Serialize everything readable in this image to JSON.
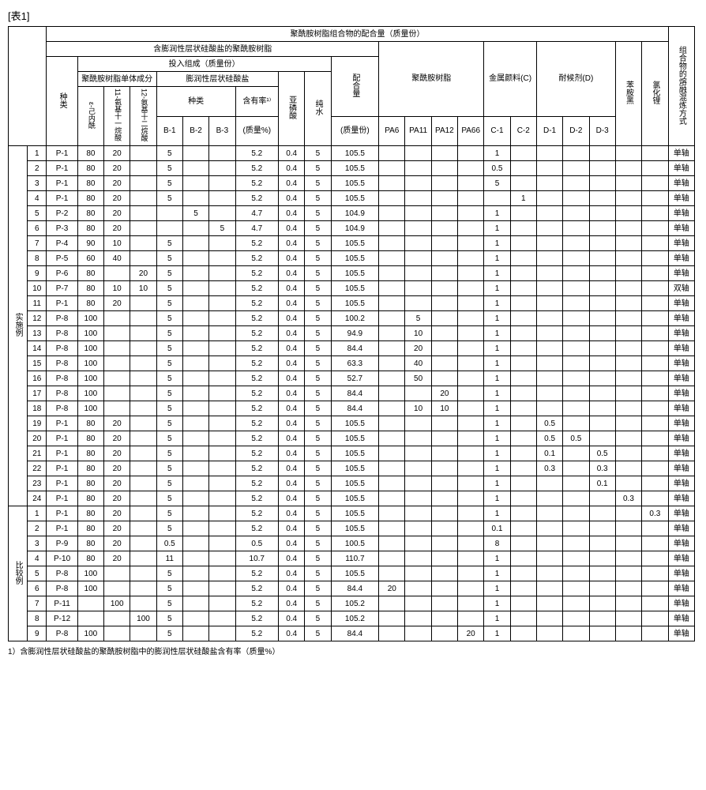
{
  "tableLabel": "[表1]",
  "mainHeaders": {
    "top": "聚酰胺树脂组合物的配合量（质量份）",
    "resinGroup": "含膨润性层状硅酸盐的聚酰胺树脂",
    "composition": "投入组成（质量份）",
    "monomer": "聚酰胺树脂单体成分",
    "silicate": "膨润性层状硅酸盐",
    "silicateKind": "种类",
    "silicateRate": "含有率¹⁾",
    "silicateRateUnit": "(质量%)",
    "phos": "亚磷酸",
    "water": "纯水",
    "amount": "配合量",
    "amountUnit": "(质量份)",
    "pa": "聚酰胺树脂",
    "pigment": "金属颜料(C)",
    "weather": "耐候剂(D)",
    "aniline": "苯胺黑",
    "licl": "氯化锂",
    "mix": "组合物的熔融混炼方式",
    "kind": "种类",
    "m1": "ε-己内酰",
    "m2": "11-氨基十一烷酸",
    "m3": "12-氨基十二烷酸"
  },
  "cols": {
    "b": [
      "B-1",
      "B-2",
      "B-3"
    ],
    "pa": [
      "PA6",
      "PA11",
      "PA12",
      "PA66"
    ],
    "c": [
      "C-1",
      "C-2"
    ],
    "d": [
      "D-1",
      "D-2",
      "D-3"
    ]
  },
  "groups": [
    {
      "label": "实施例",
      "start": 0,
      "count": 24
    },
    {
      "label": "比较例",
      "start": 24,
      "count": 9
    }
  ],
  "rows": [
    {
      "n": "1",
      "k": "P-1",
      "m": [
        "80",
        "20",
        ""
      ],
      "b": [
        "5",
        "",
        ""
      ],
      "r": "5.2",
      "ph": "0.4",
      "w": "5",
      "amt": "105.5",
      "pa": [
        "",
        "",
        "",
        ""
      ],
      "c": [
        "1",
        ""
      ],
      "d": [
        "",
        "",
        ""
      ],
      "an": "",
      "li": "",
      "mx": "单轴"
    },
    {
      "n": "2",
      "k": "P-1",
      "m": [
        "80",
        "20",
        ""
      ],
      "b": [
        "5",
        "",
        ""
      ],
      "r": "5.2",
      "ph": "0.4",
      "w": "5",
      "amt": "105.5",
      "pa": [
        "",
        "",
        "",
        ""
      ],
      "c": [
        "0.5",
        ""
      ],
      "d": [
        "",
        "",
        ""
      ],
      "an": "",
      "li": "",
      "mx": "单轴"
    },
    {
      "n": "3",
      "k": "P-1",
      "m": [
        "80",
        "20",
        ""
      ],
      "b": [
        "5",
        "",
        ""
      ],
      "r": "5.2",
      "ph": "0.4",
      "w": "5",
      "amt": "105.5",
      "pa": [
        "",
        "",
        "",
        ""
      ],
      "c": [
        "5",
        ""
      ],
      "d": [
        "",
        "",
        ""
      ],
      "an": "",
      "li": "",
      "mx": "单轴"
    },
    {
      "n": "4",
      "k": "P-1",
      "m": [
        "80",
        "20",
        ""
      ],
      "b": [
        "5",
        "",
        ""
      ],
      "r": "5.2",
      "ph": "0.4",
      "w": "5",
      "amt": "105.5",
      "pa": [
        "",
        "",
        "",
        ""
      ],
      "c": [
        "",
        "1"
      ],
      "d": [
        "",
        "",
        ""
      ],
      "an": "",
      "li": "",
      "mx": "单轴"
    },
    {
      "n": "5",
      "k": "P-2",
      "m": [
        "80",
        "20",
        ""
      ],
      "b": [
        "",
        "5",
        ""
      ],
      "r": "4.7",
      "ph": "0.4",
      "w": "5",
      "amt": "104.9",
      "pa": [
        "",
        "",
        "",
        ""
      ],
      "c": [
        "1",
        ""
      ],
      "d": [
        "",
        "",
        ""
      ],
      "an": "",
      "li": "",
      "mx": "单轴"
    },
    {
      "n": "6",
      "k": "P-3",
      "m": [
        "80",
        "20",
        ""
      ],
      "b": [
        "",
        "",
        "5"
      ],
      "r": "4.7",
      "ph": "0.4",
      "w": "5",
      "amt": "104.9",
      "pa": [
        "",
        "",
        "",
        ""
      ],
      "c": [
        "1",
        ""
      ],
      "d": [
        "",
        "",
        ""
      ],
      "an": "",
      "li": "",
      "mx": "单轴"
    },
    {
      "n": "7",
      "k": "P-4",
      "m": [
        "90",
        "10",
        ""
      ],
      "b": [
        "5",
        "",
        ""
      ],
      "r": "5.2",
      "ph": "0.4",
      "w": "5",
      "amt": "105.5",
      "pa": [
        "",
        "",
        "",
        ""
      ],
      "c": [
        "1",
        ""
      ],
      "d": [
        "",
        "",
        ""
      ],
      "an": "",
      "li": "",
      "mx": "单轴"
    },
    {
      "n": "8",
      "k": "P-5",
      "m": [
        "60",
        "40",
        ""
      ],
      "b": [
        "5",
        "",
        ""
      ],
      "r": "5.2",
      "ph": "0.4",
      "w": "5",
      "amt": "105.5",
      "pa": [
        "",
        "",
        "",
        ""
      ],
      "c": [
        "1",
        ""
      ],
      "d": [
        "",
        "",
        ""
      ],
      "an": "",
      "li": "",
      "mx": "单轴"
    },
    {
      "n": "9",
      "k": "P-6",
      "m": [
        "80",
        "",
        "20"
      ],
      "b": [
        "5",
        "",
        ""
      ],
      "r": "5.2",
      "ph": "0.4",
      "w": "5",
      "amt": "105.5",
      "pa": [
        "",
        "",
        "",
        ""
      ],
      "c": [
        "1",
        ""
      ],
      "d": [
        "",
        "",
        ""
      ],
      "an": "",
      "li": "",
      "mx": "单轴"
    },
    {
      "n": "10",
      "k": "P-7",
      "m": [
        "80",
        "10",
        "10"
      ],
      "b": [
        "5",
        "",
        ""
      ],
      "r": "5.2",
      "ph": "0.4",
      "w": "5",
      "amt": "105.5",
      "pa": [
        "",
        "",
        "",
        ""
      ],
      "c": [
        "1",
        ""
      ],
      "d": [
        "",
        "",
        ""
      ],
      "an": "",
      "li": "",
      "mx": "双轴"
    },
    {
      "n": "11",
      "k": "P-1",
      "m": [
        "80",
        "20",
        ""
      ],
      "b": [
        "5",
        "",
        ""
      ],
      "r": "5.2",
      "ph": "0.4",
      "w": "5",
      "amt": "105.5",
      "pa": [
        "",
        "",
        "",
        ""
      ],
      "c": [
        "1",
        ""
      ],
      "d": [
        "",
        "",
        ""
      ],
      "an": "",
      "li": "",
      "mx": "单轴"
    },
    {
      "n": "12",
      "k": "P-8",
      "m": [
        "100",
        "",
        ""
      ],
      "b": [
        "5",
        "",
        ""
      ],
      "r": "5.2",
      "ph": "0.4",
      "w": "5",
      "amt": "100.2",
      "pa": [
        "",
        "5",
        "",
        ""
      ],
      "c": [
        "1",
        ""
      ],
      "d": [
        "",
        "",
        ""
      ],
      "an": "",
      "li": "",
      "mx": "单轴"
    },
    {
      "n": "13",
      "k": "P-8",
      "m": [
        "100",
        "",
        ""
      ],
      "b": [
        "5",
        "",
        ""
      ],
      "r": "5.2",
      "ph": "0.4",
      "w": "5",
      "amt": "94.9",
      "pa": [
        "",
        "10",
        "",
        ""
      ],
      "c": [
        "1",
        ""
      ],
      "d": [
        "",
        "",
        ""
      ],
      "an": "",
      "li": "",
      "mx": "单轴"
    },
    {
      "n": "14",
      "k": "P-8",
      "m": [
        "100",
        "",
        ""
      ],
      "b": [
        "5",
        "",
        ""
      ],
      "r": "5.2",
      "ph": "0.4",
      "w": "5",
      "amt": "84.4",
      "pa": [
        "",
        "20",
        "",
        ""
      ],
      "c": [
        "1",
        ""
      ],
      "d": [
        "",
        "",
        ""
      ],
      "an": "",
      "li": "",
      "mx": "单轴"
    },
    {
      "n": "15",
      "k": "P-8",
      "m": [
        "100",
        "",
        ""
      ],
      "b": [
        "5",
        "",
        ""
      ],
      "r": "5.2",
      "ph": "0.4",
      "w": "5",
      "amt": "63.3",
      "pa": [
        "",
        "40",
        "",
        ""
      ],
      "c": [
        "1",
        ""
      ],
      "d": [
        "",
        "",
        ""
      ],
      "an": "",
      "li": "",
      "mx": "单轴"
    },
    {
      "n": "16",
      "k": "P-8",
      "m": [
        "100",
        "",
        ""
      ],
      "b": [
        "5",
        "",
        ""
      ],
      "r": "5.2",
      "ph": "0.4",
      "w": "5",
      "amt": "52.7",
      "pa": [
        "",
        "50",
        "",
        ""
      ],
      "c": [
        "1",
        ""
      ],
      "d": [
        "",
        "",
        ""
      ],
      "an": "",
      "li": "",
      "mx": "单轴"
    },
    {
      "n": "17",
      "k": "P-8",
      "m": [
        "100",
        "",
        ""
      ],
      "b": [
        "5",
        "",
        ""
      ],
      "r": "5.2",
      "ph": "0.4",
      "w": "5",
      "amt": "84.4",
      "pa": [
        "",
        "",
        "20",
        ""
      ],
      "c": [
        "1",
        ""
      ],
      "d": [
        "",
        "",
        ""
      ],
      "an": "",
      "li": "",
      "mx": "单轴"
    },
    {
      "n": "18",
      "k": "P-8",
      "m": [
        "100",
        "",
        ""
      ],
      "b": [
        "5",
        "",
        ""
      ],
      "r": "5.2",
      "ph": "0.4",
      "w": "5",
      "amt": "84.4",
      "pa": [
        "",
        "10",
        "10",
        ""
      ],
      "c": [
        "1",
        ""
      ],
      "d": [
        "",
        "",
        ""
      ],
      "an": "",
      "li": "",
      "mx": "单轴"
    },
    {
      "n": "19",
      "k": "P-1",
      "m": [
        "80",
        "20",
        ""
      ],
      "b": [
        "5",
        "",
        ""
      ],
      "r": "5.2",
      "ph": "0.4",
      "w": "5",
      "amt": "105.5",
      "pa": [
        "",
        "",
        "",
        ""
      ],
      "c": [
        "1",
        ""
      ],
      "d": [
        "0.5",
        "",
        ""
      ],
      "an": "",
      "li": "",
      "mx": "单轴"
    },
    {
      "n": "20",
      "k": "P-1",
      "m": [
        "80",
        "20",
        ""
      ],
      "b": [
        "5",
        "",
        ""
      ],
      "r": "5.2",
      "ph": "0.4",
      "w": "5",
      "amt": "105.5",
      "pa": [
        "",
        "",
        "",
        ""
      ],
      "c": [
        "1",
        ""
      ],
      "d": [
        "0.5",
        "0.5",
        ""
      ],
      "an": "",
      "li": "",
      "mx": "单轴"
    },
    {
      "n": "21",
      "k": "P-1",
      "m": [
        "80",
        "20",
        ""
      ],
      "b": [
        "5",
        "",
        ""
      ],
      "r": "5.2",
      "ph": "0.4",
      "w": "5",
      "amt": "105.5",
      "pa": [
        "",
        "",
        "",
        ""
      ],
      "c": [
        "1",
        ""
      ],
      "d": [
        "0.1",
        "",
        "0.5"
      ],
      "an": "",
      "li": "",
      "mx": "单轴"
    },
    {
      "n": "22",
      "k": "P-1",
      "m": [
        "80",
        "20",
        ""
      ],
      "b": [
        "5",
        "",
        ""
      ],
      "r": "5.2",
      "ph": "0.4",
      "w": "5",
      "amt": "105.5",
      "pa": [
        "",
        "",
        "",
        ""
      ],
      "c": [
        "1",
        ""
      ],
      "d": [
        "0.3",
        "",
        "0.3"
      ],
      "an": "",
      "li": "",
      "mx": "单轴"
    },
    {
      "n": "23",
      "k": "P-1",
      "m": [
        "80",
        "20",
        ""
      ],
      "b": [
        "5",
        "",
        ""
      ],
      "r": "5.2",
      "ph": "0.4",
      "w": "5",
      "amt": "105.5",
      "pa": [
        "",
        "",
        "",
        ""
      ],
      "c": [
        "1",
        ""
      ],
      "d": [
        "",
        "",
        "0.1"
      ],
      "an": "",
      "li": "",
      "mx": "单轴"
    },
    {
      "n": "24",
      "k": "P-1",
      "m": [
        "80",
        "20",
        ""
      ],
      "b": [
        "5",
        "",
        ""
      ],
      "r": "5.2",
      "ph": "0.4",
      "w": "5",
      "amt": "105.5",
      "pa": [
        "",
        "",
        "",
        ""
      ],
      "c": [
        "1",
        ""
      ],
      "d": [
        "",
        "",
        ""
      ],
      "an": "0.3",
      "li": "",
      "mx": "单轴"
    },
    {
      "n": "1",
      "k": "P-1",
      "m": [
        "80",
        "20",
        ""
      ],
      "b": [
        "5",
        "",
        ""
      ],
      "r": "5.2",
      "ph": "0.4",
      "w": "5",
      "amt": "105.5",
      "pa": [
        "",
        "",
        "",
        ""
      ],
      "c": [
        "1",
        ""
      ],
      "d": [
        "",
        "",
        ""
      ],
      "an": "",
      "li": "0.3",
      "mx": "单轴"
    },
    {
      "n": "2",
      "k": "P-1",
      "m": [
        "80",
        "20",
        ""
      ],
      "b": [
        "5",
        "",
        ""
      ],
      "r": "5.2",
      "ph": "0.4",
      "w": "5",
      "amt": "105.5",
      "pa": [
        "",
        "",
        "",
        ""
      ],
      "c": [
        "0.1",
        ""
      ],
      "d": [
        "",
        "",
        ""
      ],
      "an": "",
      "li": "",
      "mx": "单轴"
    },
    {
      "n": "3",
      "k": "P-9",
      "m": [
        "80",
        "20",
        ""
      ],
      "b": [
        "0.5",
        "",
        ""
      ],
      "r": "0.5",
      "ph": "0.4",
      "w": "5",
      "amt": "100.5",
      "pa": [
        "",
        "",
        "",
        ""
      ],
      "c": [
        "8",
        ""
      ],
      "d": [
        "",
        "",
        ""
      ],
      "an": "",
      "li": "",
      "mx": "单轴"
    },
    {
      "n": "4",
      "k": "P-10",
      "m": [
        "80",
        "20",
        ""
      ],
      "b": [
        "11",
        "",
        ""
      ],
      "r": "10.7",
      "ph": "0.4",
      "w": "5",
      "amt": "110.7",
      "pa": [
        "",
        "",
        "",
        ""
      ],
      "c": [
        "1",
        ""
      ],
      "d": [
        "",
        "",
        ""
      ],
      "an": "",
      "li": "",
      "mx": "单轴"
    },
    {
      "n": "5",
      "k": "P-8",
      "m": [
        "100",
        "",
        ""
      ],
      "b": [
        "5",
        "",
        ""
      ],
      "r": "5.2",
      "ph": "0.4",
      "w": "5",
      "amt": "105.5",
      "pa": [
        "",
        "",
        "",
        ""
      ],
      "c": [
        "1",
        ""
      ],
      "d": [
        "",
        "",
        ""
      ],
      "an": "",
      "li": "",
      "mx": "单轴"
    },
    {
      "n": "6",
      "k": "P-8",
      "m": [
        "100",
        "",
        ""
      ],
      "b": [
        "5",
        "",
        ""
      ],
      "r": "5.2",
      "ph": "0.4",
      "w": "5",
      "amt": "84.4",
      "pa": [
        "20",
        "",
        "",
        ""
      ],
      "c": [
        "1",
        ""
      ],
      "d": [
        "",
        "",
        ""
      ],
      "an": "",
      "li": "",
      "mx": "单轴"
    },
    {
      "n": "7",
      "k": "P-11",
      "m": [
        "",
        "100",
        ""
      ],
      "b": [
        "5",
        "",
        ""
      ],
      "r": "5.2",
      "ph": "0.4",
      "w": "5",
      "amt": "105.2",
      "pa": [
        "",
        "",
        "",
        ""
      ],
      "c": [
        "1",
        ""
      ],
      "d": [
        "",
        "",
        ""
      ],
      "an": "",
      "li": "",
      "mx": "单轴"
    },
    {
      "n": "8",
      "k": "P-12",
      "m": [
        "",
        "",
        "100"
      ],
      "b": [
        "5",
        "",
        ""
      ],
      "r": "5.2",
      "ph": "0.4",
      "w": "5",
      "amt": "105.2",
      "pa": [
        "",
        "",
        "",
        ""
      ],
      "c": [
        "1",
        ""
      ],
      "d": [
        "",
        "",
        ""
      ],
      "an": "",
      "li": "",
      "mx": "单轴"
    },
    {
      "n": "9",
      "k": "P-8",
      "m": [
        "100",
        "",
        ""
      ],
      "b": [
        "5",
        "",
        ""
      ],
      "r": "5.2",
      "ph": "0.4",
      "w": "5",
      "amt": "84.4",
      "pa": [
        "",
        "",
        "",
        "20"
      ],
      "c": [
        "1",
        ""
      ],
      "d": [
        "",
        "",
        ""
      ],
      "an": "",
      "li": "",
      "mx": "单轴"
    }
  ],
  "footnote": "1）含膨润性层状硅酸盐的聚酰胺树脂中的膨润性层状硅酸盐含有率（质量%）"
}
